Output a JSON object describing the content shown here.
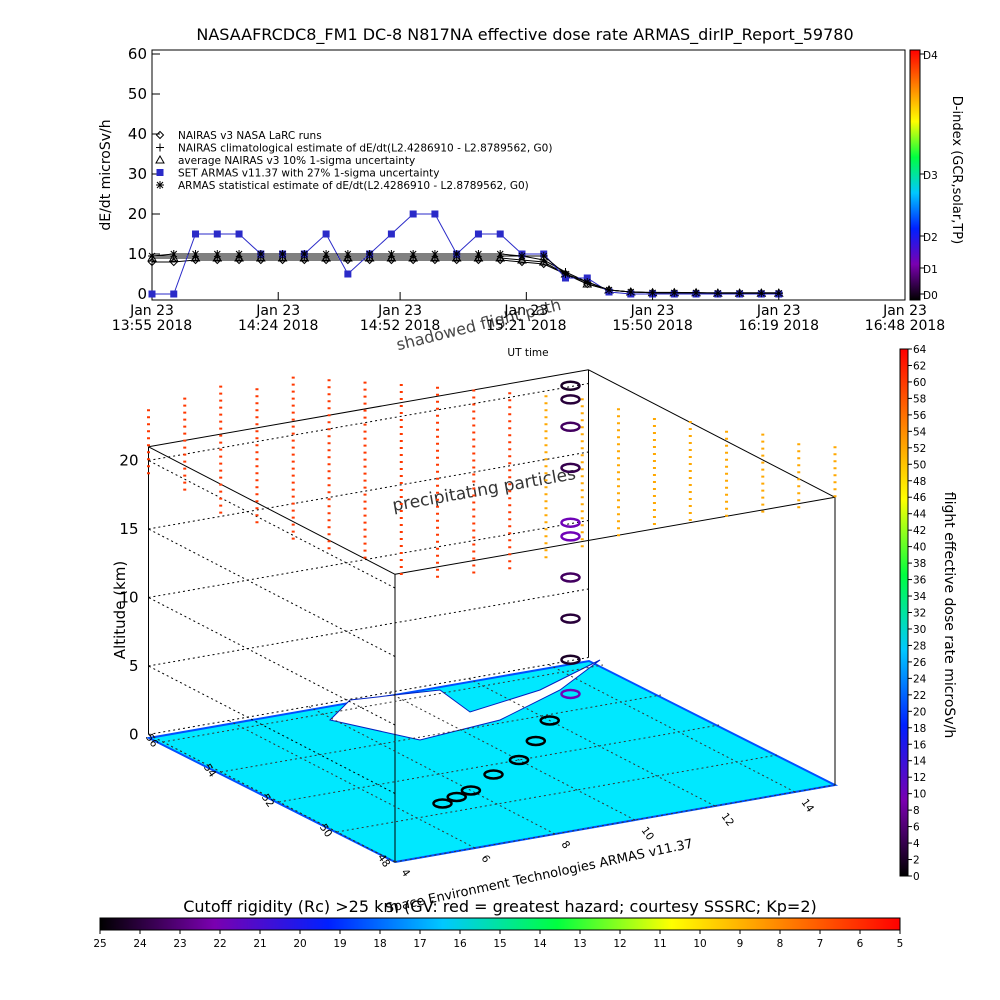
{
  "chart_data": [
    {
      "type": "line",
      "title": "NASAAFRCDC8_FM1 DC-8   N817NA effective dose rate ARMAS_dirIP_Report_59780",
      "xlabel": "UT time",
      "ylabel": "dE/dt microSv/h",
      "y2label": "D-index (GCR,solar,TP)",
      "x": [
        "2018-01-23T13:55",
        "2018-01-23T14:00",
        "2018-01-23T14:05",
        "2018-01-23T14:10",
        "2018-01-23T14:15",
        "2018-01-23T14:20",
        "2018-01-23T14:25",
        "2018-01-23T14:30",
        "2018-01-23T14:35",
        "2018-01-23T14:40",
        "2018-01-23T14:45",
        "2018-01-23T14:50",
        "2018-01-23T14:55",
        "2018-01-23T15:00",
        "2018-01-23T15:05",
        "2018-01-23T15:10",
        "2018-01-23T15:15",
        "2018-01-23T15:20",
        "2018-01-23T15:25",
        "2018-01-23T15:30",
        "2018-01-23T15:35",
        "2018-01-23T15:40",
        "2018-01-23T15:45",
        "2018-01-23T15:50",
        "2018-01-23T15:55",
        "2018-01-23T16:00",
        "2018-01-23T16:05",
        "2018-01-23T16:10",
        "2018-01-23T16:15",
        "2018-01-23T16:19"
      ],
      "xlim": [
        "2018-01-23T13:55",
        "2018-01-23T16:48"
      ],
      "xticks": [
        {
          "value": "2018-01-23T13:55",
          "label": "Jan 23\n13:55 2018"
        },
        {
          "value": "2018-01-23T14:24",
          "label": "Jan 23\n14:24 2018"
        },
        {
          "value": "2018-01-23T14:52",
          "label": "Jan 23\n14:52 2018"
        },
        {
          "value": "2018-01-23T15:21",
          "label": "Jan 23\n15:21 2018"
        },
        {
          "value": "2018-01-23T15:50",
          "label": "Jan 23\n15:50 2018"
        },
        {
          "value": "2018-01-23T16:19",
          "label": "Jan 23\n16:19 2018"
        },
        {
          "value": "2018-01-23T16:48",
          "label": "Jan 23\n16:48 2018"
        }
      ],
      "ylim": [
        -1.5,
        61
      ],
      "yticks": [
        0,
        10,
        20,
        30,
        40,
        50,
        60
      ],
      "y2lim": [
        -1.5,
        61
      ],
      "y2ticks": [
        {
          "value": 0,
          "label": "D0"
        },
        {
          "value": 6.5,
          "label": "D1"
        },
        {
          "value": 14.5,
          "label": "D2"
        },
        {
          "value": 30,
          "label": "D3"
        },
        {
          "value": 60,
          "label": "D4"
        }
      ],
      "colormap": [
        "#000000",
        "#7a00b0",
        "#0020ff",
        "#00c8ff",
        "#00ff40",
        "#ffff00",
        "#ff8000",
        "#ff0000"
      ],
      "series": [
        {
          "name": "NAIRAS v3 NASA LaRC runs",
          "marker": "diamond",
          "color": "#000000",
          "values": [
            8,
            8,
            8.5,
            8.5,
            8.5,
            8.5,
            8.5,
            8.5,
            8.5,
            8.5,
            8.5,
            8.5,
            8.5,
            8.5,
            8.5,
            8.5,
            8.5,
            8,
            7.5,
            5,
            2.5,
            1,
            0.5,
            0.3,
            0.3,
            0.3,
            0.2,
            0.2,
            0.2,
            0.2
          ]
        },
        {
          "name": "NAIRAS climatological estimate of dE/dt(L2.4286910 - L2.8789562, G0)",
          "marker": "plus",
          "color": "#000000",
          "values": [
            9.5,
            9.5,
            9.5,
            9.5,
            9.5,
            9.5,
            9.5,
            9.5,
            9.5,
            9.5,
            9.5,
            9.5,
            9.5,
            9.5,
            9.5,
            9.5,
            9.5,
            9.5,
            8.5,
            5.5,
            3,
            1,
            0.5,
            0.4,
            0.4,
            0.3,
            0.3,
            0.3,
            0.3,
            0.3
          ]
        },
        {
          "name": "average NAIRAS v3 10% 1-sigma uncertainty",
          "marker": "triangle",
          "color": "#000000",
          "values": [
            9,
            9,
            9,
            9,
            9,
            9,
            9,
            9,
            9,
            9,
            9,
            9,
            9,
            9,
            9,
            9,
            9,
            8.5,
            8,
            5,
            2.5,
            1,
            0.5,
            0.3,
            0.3,
            0.3,
            0.2,
            0.2,
            0.2,
            0.2
          ]
        },
        {
          "name": "SET ARMAS v11.37 with 27% 1-sigma uncertainty",
          "marker": "square",
          "color": "#2a2ac8",
          "values": [
            0,
            0,
            15,
            15,
            15,
            10,
            10,
            10,
            15,
            5,
            10,
            15,
            20,
            20,
            10,
            15,
            15,
            10,
            10,
            4,
            4,
            0.5,
            0,
            0,
            0,
            0,
            0,
            0,
            0,
            0
          ]
        },
        {
          "name": "ARMAS statistical estimate of dE/dt(L2.4286910 - L2.8789562, G0)",
          "marker": "star",
          "color": "#000000",
          "values": [
            9.5,
            10,
            10,
            10,
            10,
            10,
            10,
            10,
            10,
            10,
            10,
            10,
            10,
            10,
            10,
            10,
            10,
            9.5,
            9.5,
            5,
            3,
            1,
            0.5,
            0.3,
            0.3,
            0.3,
            0.2,
            0.2,
            0.2,
            0.2
          ]
        }
      ]
    },
    {
      "type": "scatter3d",
      "zlabel": "Altitude (km)",
      "annotations": [
        "shadowed flight path",
        "precipitating particles",
        "Space Environment Technologies ARMAS v11.37"
      ],
      "xlim": [
        4,
        15
      ],
      "xticks": [
        4,
        6,
        8,
        10,
        12,
        14
      ],
      "ylim": [
        48,
        56.5
      ],
      "yticks": [
        48,
        50,
        52,
        54,
        56
      ],
      "zlim": [
        0,
        21
      ],
      "zticks": [
        0,
        5,
        10,
        15,
        20
      ],
      "track": {
        "lon": [
          7,
          7.5,
          8,
          9,
          10,
          11,
          12,
          13.1,
          13.1,
          13.1,
          13.1,
          13.1,
          13.1,
          13.1,
          13.1,
          13.1,
          13.1
        ],
        "lat": [
          50.5,
          50.7,
          50.9,
          51.5,
          52,
          52.8,
          53.7,
          54.5,
          54.5,
          54.5,
          54.5,
          54.5,
          54.5,
          54.5,
          54.5,
          54.5,
          54.5
        ],
        "alt": [
          0,
          0,
          0,
          0,
          0,
          0,
          0,
          0.5,
          3,
          6,
          9,
          12,
          13,
          17,
          20,
          22,
          23
        ],
        "dose": [
          0,
          0,
          0,
          0,
          0,
          0,
          0,
          10,
          2,
          3,
          5,
          10,
          10,
          4,
          5,
          3,
          2
        ]
      },
      "curtain": {
        "lon": [
          4,
          4.58,
          5.16,
          5.74,
          6.32,
          6.89,
          7.47,
          8.05,
          8.63,
          9.21,
          9.79,
          10.37,
          10.95,
          11.53,
          12.11,
          12.68,
          13.26,
          13.84,
          14.42,
          15
        ],
        "lat": [
          56.5,
          56.05,
          55.61,
          55.16,
          54.71,
          54.26,
          53.82,
          53.37,
          52.92,
          52.47,
          52.03,
          51.58,
          51.13,
          50.68,
          50.24,
          49.79,
          49.34,
          48.89,
          48.45,
          48
        ],
        "alt_bottom": [
          19,
          18,
          16.5,
          16,
          15,
          14.5,
          14,
          13,
          13,
          13.5,
          14,
          15,
          16,
          17,
          18,
          18.5,
          19,
          19.5,
          20,
          21
        ],
        "alt_top": [
          24,
          25,
          26,
          26,
          27,
          27,
          27,
          27,
          27,
          27,
          27,
          27,
          27,
          26.5,
          26,
          26,
          25.5,
          25.5,
          25,
          25
        ],
        "dose": [
          60,
          60,
          60,
          60,
          60,
          60,
          60,
          60,
          60,
          60,
          60,
          52,
          52,
          52,
          52,
          52,
          52,
          52,
          52,
          52
        ]
      },
      "colorbar": {
        "label": "flight effective dose rate microSv/h",
        "lim": [
          0,
          64
        ],
        "ticks": [
          0,
          2,
          4,
          6,
          8,
          10,
          12,
          14,
          16,
          18,
          20,
          22,
          24,
          26,
          28,
          30,
          32,
          34,
          36,
          38,
          40,
          42,
          44,
          46,
          48,
          50,
          52,
          54,
          56,
          58,
          60,
          62,
          64
        ]
      },
      "cutoff": {
        "label": "Cutoff rigidity (Rc) >25 km (GV: red = greatest hazard; courtesy SSSRC; Kp=2)",
        "lim": [
          25,
          5
        ],
        "ticks": [
          25,
          24,
          23,
          22,
          21,
          20,
          19,
          18,
          17,
          16,
          15,
          14,
          13,
          12,
          11,
          10,
          9,
          8,
          7,
          6,
          5
        ]
      }
    }
  ]
}
